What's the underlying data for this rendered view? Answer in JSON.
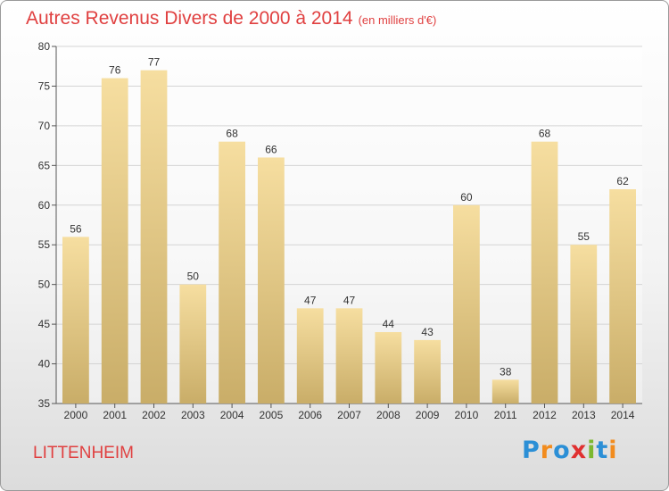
{
  "title": "Autres Revenus Divers de 2000 à 2014",
  "subtitle": "(en milliers d'€)",
  "commune": "LITTENHEIM",
  "logo": {
    "text": "Proxiti",
    "letters": [
      {
        "ch": "P",
        "color": "#2b8fd6"
      },
      {
        "ch": "r",
        "color": "#f28c1e"
      },
      {
        "ch": "o",
        "color": "#2b8fd6"
      },
      {
        "ch": "x",
        "color": "#e03030"
      },
      {
        "ch": "i",
        "color": "#7cb82f"
      },
      {
        "ch": "t",
        "color": "#2b8fd6"
      },
      {
        "ch": "i",
        "color": "#f28c1e"
      }
    ]
  },
  "colors": {
    "title": "#e04040",
    "bar_top": "#f6dea0",
    "bar_bottom": "#c9ad68"
  },
  "chart_data": {
    "type": "bar",
    "title": "Autres Revenus Divers de 2000 à 2014",
    "subtitle": "(en milliers d'€)",
    "categories": [
      "2000",
      "2001",
      "2002",
      "2003",
      "2004",
      "2005",
      "2006",
      "2007",
      "2008",
      "2009",
      "2010",
      "2011",
      "2012",
      "2013",
      "2014"
    ],
    "values": [
      56,
      76,
      77,
      50,
      68,
      66,
      47,
      47,
      44,
      43,
      60,
      38,
      68,
      55,
      62
    ],
    "ylim": [
      35,
      80
    ],
    "yticks": [
      35,
      40,
      45,
      50,
      55,
      60,
      65,
      70,
      75,
      80
    ],
    "grid": true,
    "data_labels": true
  }
}
